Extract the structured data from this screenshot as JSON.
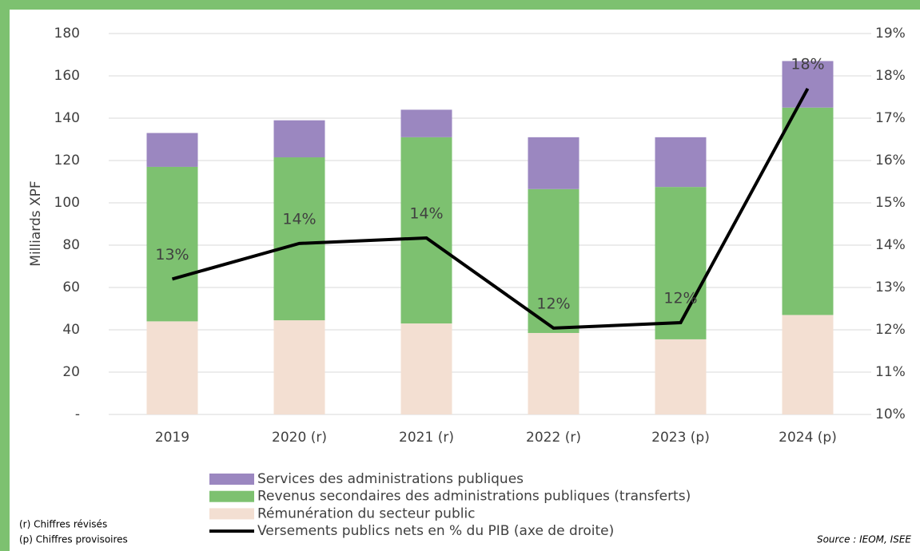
{
  "chart_data": {
    "type": "bar",
    "stacked": true,
    "ylabel": "Milliards XPF",
    "categories": [
      "2019",
      "2020 (r)",
      "2021 (r)",
      "2022 (r)",
      "2023 (p)",
      "2024 (p)"
    ],
    "series": [
      {
        "name": "Rémunération du secteur public",
        "color": "#f3dfd2",
        "values": [
          44,
          44.5,
          43,
          38.5,
          35.5,
          47
        ]
      },
      {
        "name": "Revenus secondaires des administrations publiques (transferts)",
        "color": "#7dc170",
        "values": [
          73,
          77,
          88,
          68,
          72,
          98
        ]
      },
      {
        "name": "Services des administrations publiques",
        "color": "#9b87c0",
        "values": [
          16,
          17.5,
          13,
          24.5,
          23.5,
          22
        ]
      },
      {
        "name": "Versements publics nets en % du PIB (axe de droite)",
        "type": "line",
        "axis": "y2",
        "color": "#000000",
        "values": [
          13.2,
          14.04,
          14.17,
          12.04,
          12.17,
          17.7
        ],
        "value_labels": [
          "13%",
          "14%",
          "14%",
          "12%",
          "12%",
          "18%"
        ]
      }
    ],
    "ylim": [
      0,
      180
    ],
    "yticks": [
      {
        "value": 0,
        "label": "-"
      },
      20,
      40,
      60,
      80,
      100,
      120,
      140,
      160,
      180
    ],
    "y2lim": [
      10,
      19
    ],
    "y2ticks": [
      {
        "value": 10,
        "label": "10%"
      },
      {
        "value": 11,
        "label": "11%"
      },
      {
        "value": 12,
        "label": "12%"
      },
      {
        "value": 13,
        "label": "13%"
      },
      {
        "value": 14,
        "label": "14%"
      },
      {
        "value": 15,
        "label": "15%"
      },
      {
        "value": 16,
        "label": "16%"
      },
      {
        "value": 17,
        "label": "17%"
      },
      {
        "value": 18,
        "label": "18%"
      },
      {
        "value": 19,
        "label": "19%"
      }
    ],
    "grid": true,
    "notes": [
      "(r) Chiffres révisés",
      "(p) Chiffres provisoires"
    ],
    "source": "Source : IEOM, ISEE"
  }
}
